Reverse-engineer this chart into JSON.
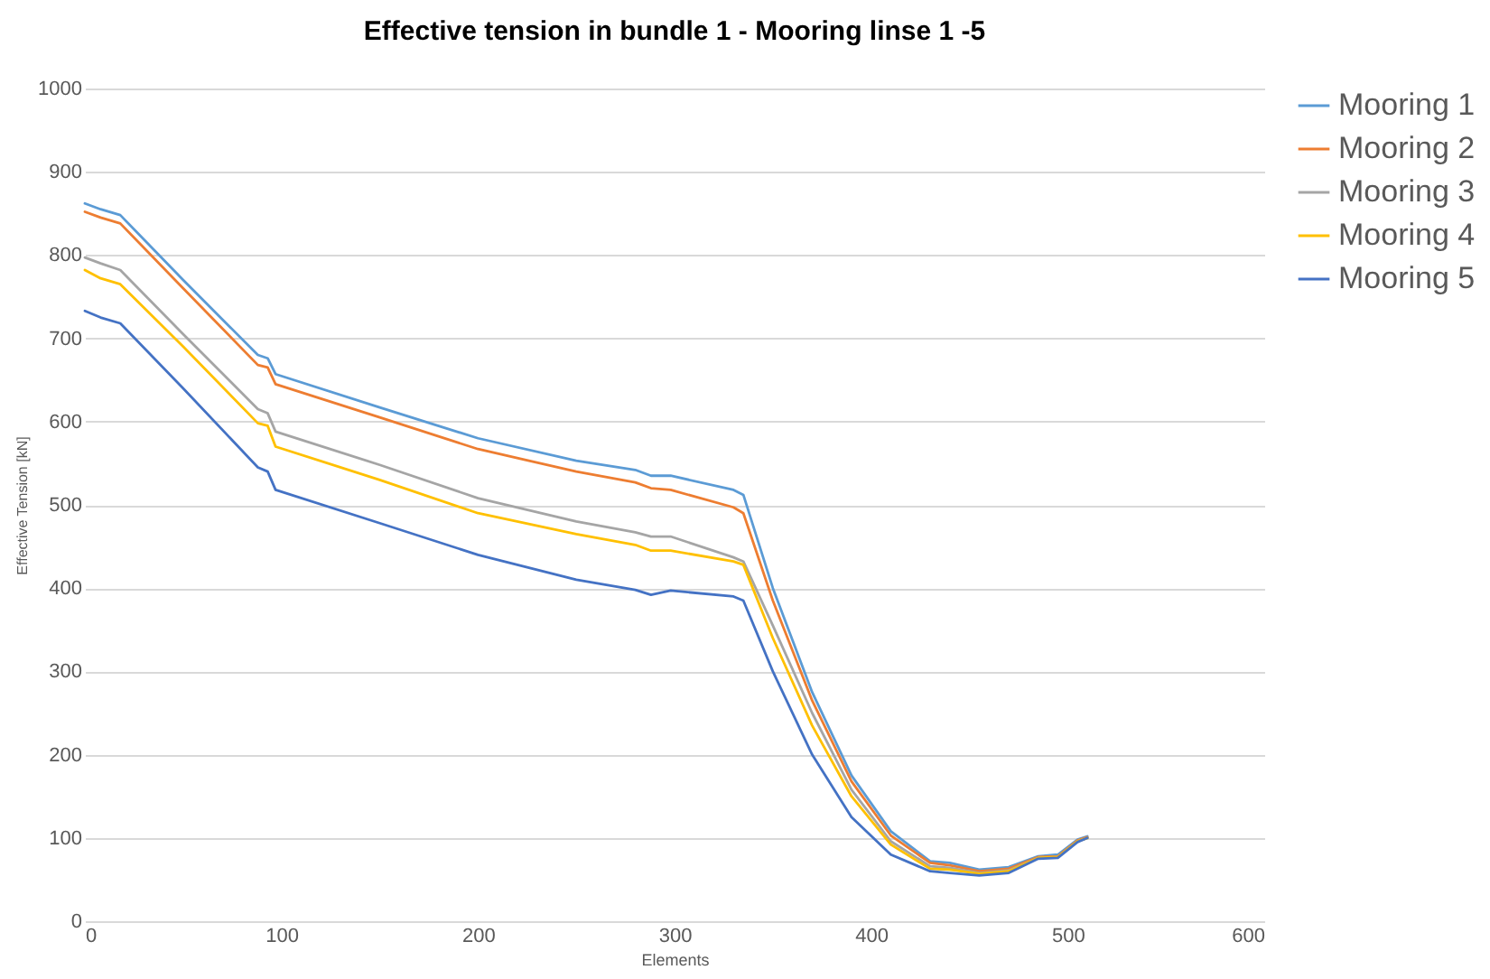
{
  "chart_data": {
    "type": "line",
    "title": "Effective tension in bundle 1 - Mooring linse  1 -5",
    "xlabel": "Elements",
    "ylabel": "Effective Tension [kN]",
    "x": [
      0,
      8,
      18,
      50,
      88,
      93,
      97,
      150,
      200,
      250,
      280,
      288,
      298,
      330,
      335,
      350,
      370,
      390,
      410,
      430,
      440,
      455,
      470,
      485,
      495,
      505,
      510
    ],
    "xlim": [
      0,
      600
    ],
    "xticks": [
      0,
      100,
      200,
      300,
      400,
      500,
      600
    ],
    "ylim": [
      0,
      1000
    ],
    "yticks": [
      0,
      100,
      200,
      300,
      400,
      500,
      600,
      700,
      800,
      900,
      1000
    ],
    "grid": "y",
    "legend": "right",
    "marker": "none",
    "line_style": "solid",
    "series": [
      {
        "name": "Mooring 1",
        "color": "#5b9bd5",
        "values": [
          862,
          855,
          848,
          770,
          680,
          676,
          657,
          617,
          580,
          553,
          542,
          535,
          535,
          518,
          512,
          400,
          275,
          175,
          108,
          72,
          70,
          62,
          65,
          78,
          80,
          98,
          102
        ]
      },
      {
        "name": "Mooring 2",
        "color": "#ed7d31",
        "values": [
          852,
          845,
          838,
          760,
          668,
          665,
          645,
          605,
          567,
          540,
          527,
          520,
          518,
          497,
          490,
          385,
          265,
          168,
          103,
          70,
          67,
          60,
          63,
          77,
          78,
          97,
          101
        ]
      },
      {
        "name": "Mooring 3",
        "color": "#a5a5a5",
        "values": [
          797,
          790,
          782,
          705,
          615,
          610,
          588,
          548,
          508,
          480,
          467,
          462,
          462,
          437,
          432,
          355,
          250,
          158,
          96,
          66,
          64,
          58,
          61,
          76,
          77,
          96,
          100
        ]
      },
      {
        "name": "Mooring 4",
        "color": "#ffc000",
        "values": [
          782,
          772,
          765,
          690,
          598,
          595,
          570,
          530,
          490,
          465,
          452,
          445,
          445,
          432,
          428,
          340,
          235,
          150,
          92,
          63,
          62,
          57,
          60,
          76,
          77,
          96,
          100
        ]
      },
      {
        "name": "Mooring 5",
        "color": "#4472c4",
        "values": [
          733,
          725,
          718,
          640,
          545,
          540,
          518,
          478,
          440,
          410,
          398,
          392,
          397,
          390,
          385,
          300,
          200,
          125,
          80,
          60,
          58,
          55,
          58,
          75,
          76,
          95,
          100
        ]
      }
    ]
  }
}
